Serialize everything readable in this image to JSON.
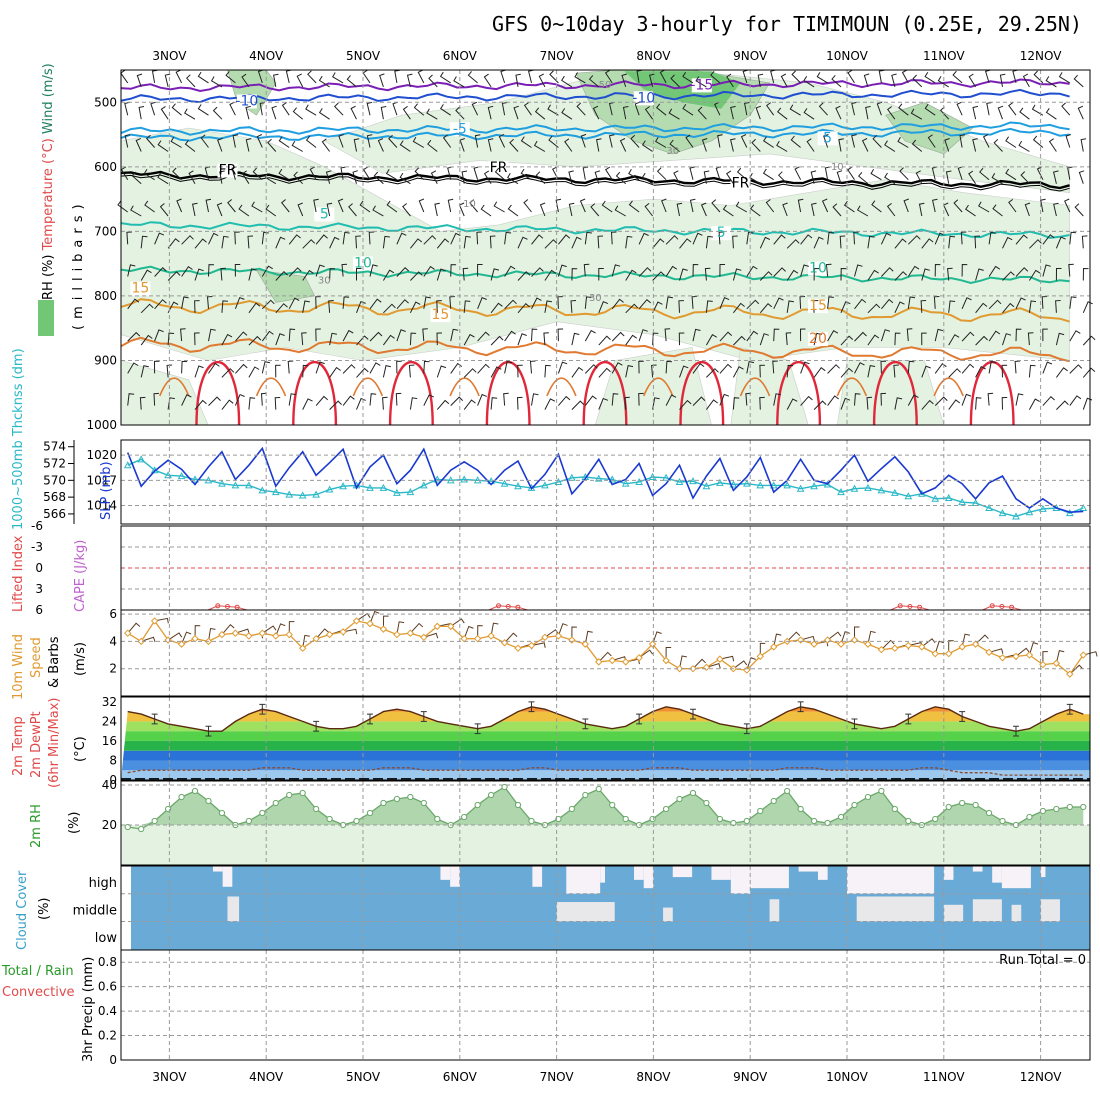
{
  "title": "GFS 0~10day 3-hourly for TIMIMOUN (0.25E, 29.25N)",
  "days": [
    "3NOV",
    "4NOV",
    "5NOV",
    "6NOV",
    "7NOV",
    "8NOV",
    "9NOV",
    "10NOV",
    "11NOV",
    "12NOV"
  ],
  "colors": {
    "rh_light": "#e3f2e1",
    "rh_mid": "#b5dcb0",
    "rh_dark": "#72c776",
    "slp": "#1a39d0",
    "thick": "#2ab8c8",
    "li": "#e04a4a",
    "wind": "#e09a30",
    "cloud": "#6aaad6",
    "rh2m": "#6aa86a"
  },
  "chart_data": [
    {
      "type": "contour",
      "panel": "upper-air",
      "ylabel_parts": [
        "RH (%)",
        "Temperature (°C)",
        "Wind (m/s)"
      ],
      "yunit": "(millibars)",
      "yticks": [
        "500",
        "600",
        "700",
        "800",
        "900",
        "1000"
      ],
      "ylim": [
        1000,
        450
      ],
      "isotherms": [
        {
          "label": "-15",
          "level": 478,
          "color": "#7a1fb5",
          "label_positions": [
            [
              "8.5NOV",
              480
            ]
          ]
        },
        {
          "label": "-10",
          "level": 495,
          "color": "#1f4fd0",
          "label_positions": [
            [
              "3.8NOV",
              505
            ],
            [
              "7.9NOV",
              500
            ]
          ]
        },
        {
          "label": "-5",
          "level": 545,
          "color": "#1f9fe0",
          "label_positions": [
            [
              "6.0NOV",
              548
            ]
          ]
        },
        {
          "label": "5",
          "level": 555,
          "color": "#1f9fe0",
          "label_positions": [
            [
              "9.8NOV",
              562
            ]
          ]
        },
        {
          "label": "FR",
          "level": 612,
          "color": "#000000",
          "label_positions": [
            [
              "3.6NOV",
              612
            ],
            [
              "6.4NOV",
              608
            ],
            [
              "8.9NOV",
              632
            ]
          ]
        },
        {
          "label": "5",
          "level": 690,
          "color": "#20bdb0",
          "label_positions": [
            [
              "4.6NOV",
              680
            ],
            [
              "8.7NOV",
              709
            ]
          ]
        },
        {
          "label": "10",
          "level": 760,
          "color": "#20b890",
          "label_positions": [
            [
              "5.0NOV",
              756
            ],
            [
              "9.7NOV",
              764
            ]
          ]
        },
        {
          "label": "15",
          "level": 815,
          "color": "#e09a30",
          "label_positions": [
            [
              "2.7NOV",
              795
            ],
            [
              "5.8NOV",
              836
            ],
            [
              "9.7NOV",
              822
            ]
          ]
        },
        {
          "label": "20",
          "level": 875,
          "color": "#e07a30",
          "label_positions": [
            [
              "9.7NOV",
              873
            ]
          ]
        }
      ],
      "rh_labels": [
        {
          "text": "50",
          "at": [
            "7.5NOV",
            478
          ]
        },
        {
          "text": "30",
          "at": [
            "8.2NOV",
            580
          ]
        },
        {
          "text": "10",
          "at": [
            "9.9NOV",
            605
          ]
        },
        {
          "text": "10",
          "at": [
            "6.1NOV",
            662
          ]
        },
        {
          "text": "30",
          "at": [
            "4.6NOV",
            781
          ]
        },
        {
          "text": "30",
          "at": [
            "7.4NOV",
            808
          ]
        }
      ]
    },
    {
      "type": "line",
      "panel": "slp-thickness",
      "ylabel_left": "1000~500mb Thcknss (dm)",
      "ylabel_right": "SLP (mb)",
      "yticks_left": [
        "574",
        "572",
        "570",
        "568",
        "566"
      ],
      "yticks_right": [
        "1020",
        "1017",
        "1014"
      ],
      "series": [
        {
          "name": "SLP",
          "axis": "right",
          "values": [
            1020.3,
            1016.3,
            1018.1,
            1019.4,
            1018.3,
            1016.5,
            1018.6,
            1020.4,
            1017.1,
            1018.8,
            1020.8,
            1016.3,
            1018.5,
            1020.4,
            1017.6,
            1019.1,
            1020.7,
            1016.1,
            1018.6,
            1020.0,
            1016.6,
            1018.2,
            1020.7,
            1016.4,
            1018.2,
            1019.2,
            1018.2,
            1016.5,
            1018.2,
            1019.3,
            1016.0,
            1017.7,
            1020.1,
            1015.4,
            1017.2,
            1019.5,
            1016.5,
            1017.1,
            1019.0,
            1015.2,
            1016.6,
            1018.8,
            1014.9,
            1017.5,
            1019.6,
            1015.8,
            1017.4,
            1019.7,
            1015.6,
            1017.0,
            1019.5,
            1017.0,
            1016.6,
            1018.2,
            1020.0,
            1016.9,
            1018.4,
            1019.8,
            1018.0,
            1015.4,
            1016.1,
            1017.6,
            1016.6,
            1014.8,
            1016.7,
            1017.5,
            1014.8,
            1013.7,
            1014.8,
            1013.7,
            1013.2,
            1013.3
          ]
        },
        {
          "name": "Thickness",
          "axis": "left",
          "values": [
            571.8,
            572.5,
            571.2,
            570.6,
            570.5,
            570.1,
            570.0,
            569.6,
            569.4,
            569.4,
            568.8,
            568.6,
            568.3,
            568.2,
            568.3,
            568.9,
            569.3,
            569.4,
            569.1,
            569.1,
            568.5,
            568.6,
            569.4,
            570.1,
            570.0,
            570.1,
            570.0,
            569.9,
            569.6,
            569.3,
            569.1,
            569.4,
            569.8,
            570.3,
            570.4,
            570.2,
            570.1,
            569.6,
            569.8,
            570.4,
            570.3,
            569.8,
            569.9,
            569.3,
            569.7,
            569.5,
            569.6,
            569.4,
            569.4,
            569.4,
            569.0,
            569.3,
            569.5,
            568.6,
            569.0,
            569.1,
            568.8,
            568.5,
            568.1,
            568.4,
            567.8,
            567.9,
            567.4,
            567.3,
            566.7,
            566.1,
            565.7,
            566.2,
            566.6,
            566.7,
            566.1,
            566.7
          ]
        }
      ]
    },
    {
      "type": "line",
      "panel": "lifted-index-cape",
      "ylabel_parts": [
        "Lifted Index",
        "CAPE (J/kg)"
      ],
      "yticks": [
        "-6",
        "-3",
        "0",
        "3",
        "6"
      ],
      "ylim": [
        -6,
        6
      ],
      "zero_line": 0
    },
    {
      "type": "line",
      "panel": "10m-wind",
      "ylabel_parts": [
        "10m Wind",
        "Speed",
        "& Barbs",
        "(m/s)"
      ],
      "yticks": [
        "6",
        "4",
        "2"
      ],
      "ylim": [
        0,
        6
      ],
      "series": [
        {
          "name": "10m Wind Speed",
          "values": [
            4.6,
            4.0,
            5.5,
            4.1,
            3.8,
            4.2,
            4.0,
            4.5,
            4.6,
            4.4,
            4.6,
            4.4,
            4.5,
            3.5,
            4.2,
            4.5,
            4.7,
            5.5,
            5.3,
            4.9,
            4.5,
            4.6,
            4.3,
            5.1,
            5.1,
            4.2,
            4.2,
            4.4,
            3.9,
            3.5,
            3.7,
            4.3,
            4.4,
            4.1,
            3.8,
            2.5,
            2.6,
            2.5,
            2.8,
            3.8,
            2.6,
            2.0,
            2.0,
            2.1,
            2.7,
            2.0,
            1.9,
            2.9,
            3.6,
            4.0,
            4.1,
            3.8,
            4.1,
            3.8,
            4.1,
            3.8,
            3.4,
            3.5,
            3.7,
            3.6,
            3.1,
            3.1,
            3.6,
            3.8,
            3.2,
            2.8,
            2.9,
            3.0,
            2.3,
            2.4,
            1.6,
            3.0
          ]
        }
      ]
    },
    {
      "type": "area",
      "panel": "2m-temp",
      "ylabel_parts": [
        "2m Temp",
        "2m DewPt",
        "(6hr Min/Max)",
        "(°C)"
      ],
      "yticks": [
        "32",
        "24",
        "16",
        "8",
        "0"
      ],
      "ylim": [
        0,
        34
      ],
      "series": [
        {
          "name": "2m Temp",
          "values": [
            28,
            27,
            25,
            23,
            22,
            21,
            20,
            20,
            24,
            27,
            29,
            28,
            26,
            24,
            22,
            21,
            21,
            22,
            25,
            28,
            29,
            28,
            26,
            24,
            23,
            22,
            21,
            22,
            25,
            28,
            30,
            29,
            27,
            25,
            23,
            22,
            21,
            22,
            25,
            28,
            30,
            29,
            27,
            25,
            23,
            22,
            21,
            22,
            25,
            28,
            30,
            29,
            27,
            25,
            23,
            22,
            21,
            22,
            25,
            28,
            30,
            29,
            26,
            24,
            22,
            21,
            20,
            21,
            24,
            27,
            29,
            27
          ]
        },
        {
          "name": "2m DewPt",
          "values": [
            3,
            4,
            4,
            4,
            4,
            4,
            4,
            4,
            4,
            4,
            5,
            5,
            5,
            4,
            4,
            4,
            4,
            4,
            4,
            5,
            5,
            5,
            4,
            4,
            4,
            4,
            4,
            4,
            4,
            4,
            5,
            5,
            4,
            4,
            4,
            4,
            4,
            4,
            4,
            5,
            5,
            5,
            4,
            4,
            4,
            4,
            4,
            4,
            4,
            5,
            5,
            5,
            4,
            4,
            4,
            4,
            4,
            4,
            4,
            5,
            5,
            4,
            3,
            3,
            3,
            2,
            2,
            2,
            2,
            2,
            2,
            2
          ]
        }
      ]
    },
    {
      "type": "area",
      "panel": "2m-rh",
      "ylabel_parts": [
        "2m RH",
        "(%)"
      ],
      "yticks": [
        "40",
        "20"
      ],
      "ylim": [
        0,
        42
      ],
      "series": [
        {
          "name": "2m RH",
          "values": [
            19,
            18,
            22,
            28,
            34,
            37,
            32,
            26,
            20,
            22,
            26,
            31,
            35,
            36,
            28,
            23,
            20,
            22,
            26,
            31,
            33,
            34,
            31,
            23,
            20,
            24,
            30,
            35,
            39,
            30,
            22,
            20,
            23,
            28,
            35,
            38,
            30,
            23,
            20,
            23,
            28,
            33,
            36,
            31,
            23,
            21,
            22,
            27,
            32,
            37,
            28,
            22,
            21,
            24,
            30,
            34,
            37,
            28,
            22,
            20,
            23,
            29,
            31,
            30,
            26,
            22,
            20,
            24,
            27,
            28,
            29,
            29
          ]
        }
      ]
    },
    {
      "type": "heatmap",
      "panel": "cloud-cover",
      "ylabel_parts": [
        "Cloud Cover",
        "(%)"
      ],
      "rows": [
        "high",
        "middle",
        "low"
      ]
    },
    {
      "type": "bar",
      "panel": "precip",
      "ylabel_parts": [
        "Total / Rain",
        "Convective",
        "3hr Precip (mm)"
      ],
      "yticks": [
        "0.8",
        "0.6",
        "0.4",
        "0.2",
        "0"
      ],
      "ylim": [
        0,
        0.9
      ],
      "annotation": "Run Total = 0",
      "values": []
    }
  ]
}
